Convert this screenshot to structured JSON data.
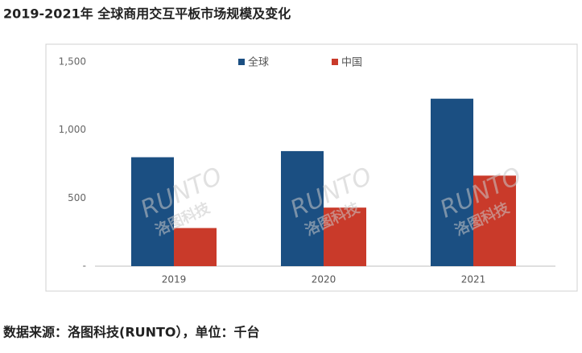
{
  "chart_data": {
    "type": "bar",
    "title": "2019-2021年 全球商用交互平板市场规模及变化",
    "source": "数据来源：洛图科技(RUNTO），单位：千台",
    "watermark": "RUNTO",
    "watermark_sub": "洛图科技",
    "categories": [
      "2019",
      "2020",
      "2021"
    ],
    "series": [
      {
        "name": "全球",
        "color": "#1b4f82",
        "values": [
          800,
          845,
          1230
        ]
      },
      {
        "name": "中国",
        "color": "#c93a2a",
        "values": [
          280,
          430,
          665
        ]
      }
    ],
    "ylim": [
      0,
      1500
    ],
    "yticks": [
      {
        "value": 0,
        "label": "-"
      },
      500,
      {
        "value": 1000,
        "label": "1,000"
      },
      {
        "value": 1500,
        "label": "1,500"
      }
    ],
    "grid": false,
    "legend": "top"
  }
}
